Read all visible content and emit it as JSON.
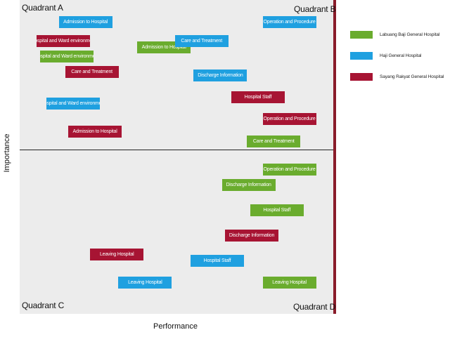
{
  "chart_data": {
    "type": "scatter",
    "title": "",
    "xlabel": "Performance",
    "ylabel": "Importance",
    "quadrants": {
      "top_left": "Quadrant A",
      "top_right": "Quadrant B",
      "bottom_left": "Quadrant C",
      "bottom_right": "Quadrant D"
    },
    "legend_placement": "right",
    "series": [
      {
        "name": "Labuang Baji General Hospital",
        "color": "#6aac2e",
        "points": [
          {
            "label": "Admission to Hospital",
            "x": 0.46,
            "y": 0.85
          },
          {
            "label": "Hospital and Ward environment",
            "x": 0.15,
            "y": 0.82
          },
          {
            "label": "Care and Treatment",
            "x": 0.81,
            "y": 0.55
          },
          {
            "label": "Operation and Procedure",
            "x": 0.86,
            "y": 0.46
          },
          {
            "label": "Discharge Information",
            "x": 0.73,
            "y": 0.41
          },
          {
            "label": "Hospital Staff",
            "x": 0.82,
            "y": 0.33
          },
          {
            "label": "Leaving Hospital",
            "x": 0.86,
            "y": 0.1
          }
        ]
      },
      {
        "name": "Haji General Hospital",
        "color": "#1fa0e0",
        "points": [
          {
            "label": "Admission to Hospital",
            "x": 0.21,
            "y": 0.93
          },
          {
            "label": "Operation and Procedure",
            "x": 0.86,
            "y": 0.93
          },
          {
            "label": "Care and Treatment",
            "x": 0.58,
            "y": 0.87
          },
          {
            "label": "Discharge Information",
            "x": 0.64,
            "y": 0.76
          },
          {
            "label": "Hospital and Ward environment",
            "x": 0.17,
            "y": 0.67
          },
          {
            "label": "Hospital Staff",
            "x": 0.63,
            "y": 0.17
          },
          {
            "label": "Leaving Hospital",
            "x": 0.4,
            "y": 0.1
          }
        ]
      },
      {
        "name": "Sayang Rakyat General Hospital",
        "color": "#a71433",
        "points": [
          {
            "label": "Hospital and Ward environment",
            "x": 0.14,
            "y": 0.87
          },
          {
            "label": "Care and Treatment",
            "x": 0.23,
            "y": 0.77
          },
          {
            "label": "Hospital Staff",
            "x": 0.76,
            "y": 0.69
          },
          {
            "label": "Operation and Procedure",
            "x": 0.86,
            "y": 0.62
          },
          {
            "label": "Admission to Hospital",
            "x": 0.24,
            "y": 0.58
          },
          {
            "label": "Discharge Information",
            "x": 0.74,
            "y": 0.25
          },
          {
            "label": "Leaving Hospital",
            "x": 0.31,
            "y": 0.19
          }
        ]
      }
    ]
  }
}
